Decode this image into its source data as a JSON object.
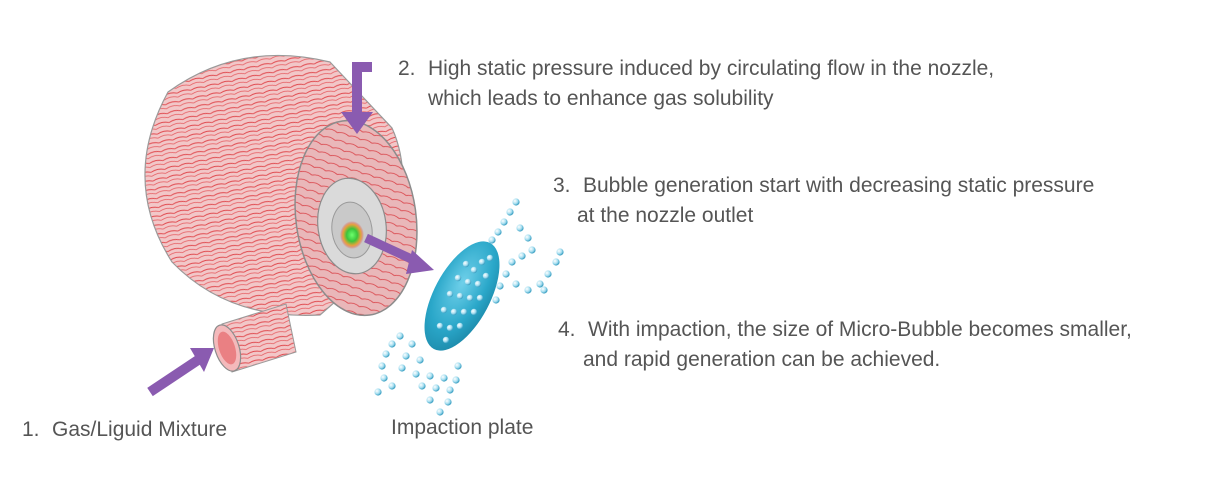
{
  "labels": {
    "step1": {
      "number": "1.",
      "text": "Gas/Liguid Mixture"
    },
    "step2": {
      "number": "2.",
      "line1": "High static pressure induced by circulating flow in the nozzle,",
      "line2": "which leads to enhance gas solubility"
    },
    "step3": {
      "number": "3.",
      "line1": "Bubble generation start with decreasing static pressure",
      "line2": "at the nozzle outlet"
    },
    "step4": {
      "number": "4.",
      "line1": "With impaction, the size of Micro-Bubble becomes smaller,",
      "line2": "and rapid generation can be achieved."
    },
    "plate": "Impaction plate"
  },
  "colors": {
    "arrow": "#8a5bb0",
    "flow_lines": "#e0474c",
    "nozzle_body": "#d9d9d9",
    "plate": "#2aa7c9",
    "bubble": "#8fd3ea",
    "text": "#555555"
  }
}
